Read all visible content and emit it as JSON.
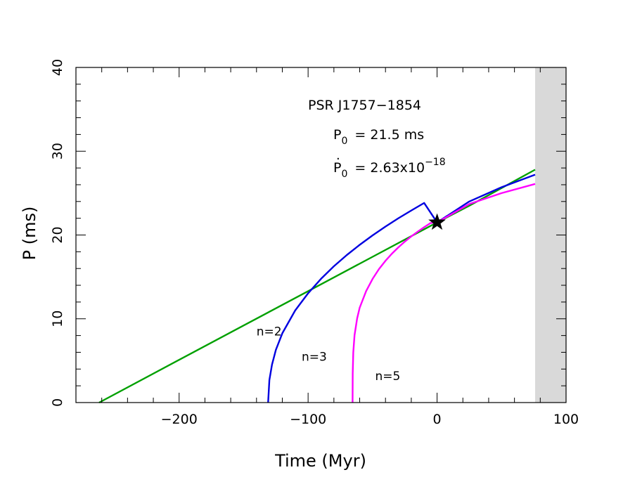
{
  "chart_data": {
    "type": "line",
    "title": "",
    "xlabel": "Time   (Myr)",
    "ylabel": "P   (ms)",
    "xlim": [
      -280,
      100
    ],
    "ylim": [
      0,
      40
    ],
    "xticks": [
      -200,
      -100,
      0,
      100
    ],
    "xtick_labels": [
      "−200",
      "−100",
      "0",
      "100"
    ],
    "yticks": [
      0,
      10,
      20,
      30,
      40
    ],
    "ytick_labels": [
      "0",
      "10",
      "20",
      "30",
      "40"
    ],
    "grid": false,
    "legend": "none",
    "annotations": {
      "pulsar": "PSR J1757−1854",
      "p0_label": "P",
      "p0_sub": "0",
      "p0_value": "= 21.5 ms",
      "pdot_label": "P",
      "pdot_sub": "0",
      "pdot_value": "= 2.63x10",
      "pdot_exp": "−18"
    },
    "current_point": {
      "x": 0,
      "y": 21.5,
      "marker": "star"
    },
    "shaded_region": {
      "x_start": 76,
      "x_end": 100,
      "color": "#d9d9d9"
    },
    "series": [
      {
        "label": "n=2",
        "label_pos": [
          -140,
          8
        ],
        "color": "#00a000",
        "x": [
          -262,
          -200,
          -150,
          -100,
          -50,
          0,
          25,
          50,
          76
        ],
        "y": [
          0,
          5.1,
          9.2,
          13.3,
          17.4,
          21.5,
          23.5,
          25.6,
          27.8
        ]
      },
      {
        "label": "n=3",
        "label_pos": [
          -105,
          5
        ],
        "color": "#0000e0",
        "x": [
          -131,
          -130,
          -128,
          -125,
          -120,
          -110,
          -100,
          -90,
          -80,
          -70,
          -60,
          -50,
          -40,
          -30,
          -20,
          -10,
          0,
          25,
          50,
          76
        ],
        "y": [
          0,
          2.69,
          4.52,
          6.28,
          8.27,
          10.99,
          13.05,
          14.77,
          16.27,
          17.61,
          18.83,
          19.96,
          21.01,
          22.0,
          22.93,
          23.82,
          21.5,
          24.0,
          25.7,
          27.2
        ]
      },
      {
        "label": "n=5",
        "label_pos": [
          -48,
          2.7
        ],
        "color": "#ff00ff",
        "x": [
          -65.5,
          -65.4,
          -65,
          -64,
          -62,
          -60,
          -55,
          -50,
          -45,
          -40,
          -35,
          -30,
          -25,
          -20,
          -15,
          -10,
          -5,
          0,
          25,
          50,
          76
        ],
        "y": [
          0,
          3.47,
          5.99,
          8.04,
          10.05,
          11.32,
          13.31,
          14.77,
          15.94,
          16.92,
          17.78,
          18.53,
          19.21,
          19.83,
          20.4,
          20.93,
          21.43,
          21.5,
          23.7,
          25.0,
          26.1
        ]
      }
    ]
  }
}
